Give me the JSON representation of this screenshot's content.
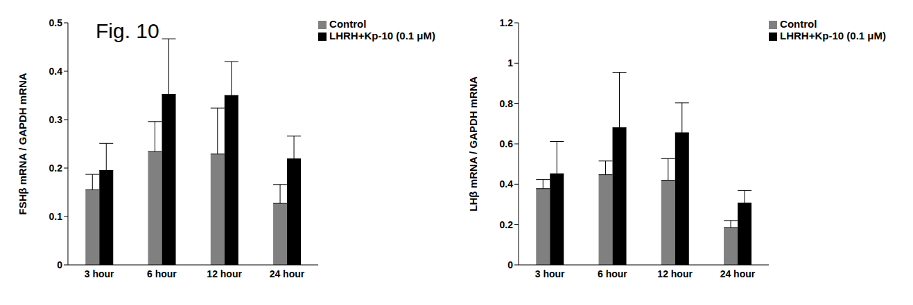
{
  "chart_data": [
    {
      "type": "bar",
      "annotations": [
        "Fig. 10"
      ],
      "y_label": "FSHβ mRNA / GAPDH mRNA",
      "categories": [
        "3 hour",
        "6 hour",
        "12 hour",
        "24 hour"
      ],
      "series": [
        {
          "name": "Control",
          "color": "#808080",
          "values": [
            0.155,
            0.234,
            0.229,
            0.127
          ],
          "errors": [
            0.032,
            0.062,
            0.095,
            0.039
          ]
        },
        {
          "name": "LHRH+Kp-10  (0.1 μM)",
          "color": "#000000",
          "values": [
            0.195,
            0.352,
            0.35,
            0.219
          ],
          "errors": [
            0.056,
            0.115,
            0.07,
            0.047
          ]
        }
      ],
      "ylim": [
        0,
        0.5
      ],
      "yticks": [
        0,
        0.1,
        0.2,
        0.3,
        0.4,
        0.5
      ],
      "grid": false,
      "legend": "upper right"
    },
    {
      "type": "bar",
      "y_label": "LHβ mRNA / GAPDH mRNA",
      "categories": [
        "3 hour",
        "6 hour",
        "12 hour",
        "24 hour"
      ],
      "series": [
        {
          "name": "Control",
          "color": "#808080",
          "values": [
            0.378,
            0.447,
            0.42,
            0.185
          ],
          "errors": [
            0.045,
            0.068,
            0.107,
            0.035
          ]
        },
        {
          "name": "LHRH+Kp-10  (0.1 μM)",
          "color": "#000000",
          "values": [
            0.452,
            0.68,
            0.655,
            0.307
          ],
          "errors": [
            0.16,
            0.275,
            0.148,
            0.062
          ]
        }
      ],
      "ylim": [
        0,
        1.2
      ],
      "yticks": [
        0,
        0.2,
        0.4,
        0.6,
        0.8,
        1,
        1.2
      ],
      "grid": false,
      "legend": "upper right"
    }
  ]
}
